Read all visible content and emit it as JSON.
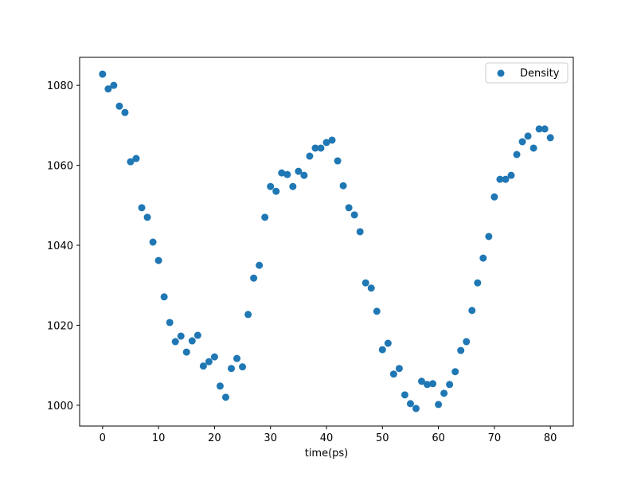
{
  "chart_data": {
    "type": "scatter",
    "xlabel": "time(ps)",
    "x": [
      0,
      1,
      2,
      3,
      4,
      5,
      6,
      7,
      8,
      9,
      10,
      11,
      12,
      13,
      14,
      15,
      16,
      17,
      18,
      19,
      20,
      21,
      22,
      23,
      24,
      25,
      26,
      27,
      28,
      29,
      30,
      31,
      32,
      33,
      34,
      35,
      36,
      37,
      38,
      39,
      40,
      41,
      42,
      43,
      44,
      45,
      46,
      47,
      48,
      49,
      50,
      51,
      52,
      53,
      54,
      55,
      56,
      57,
      58,
      59,
      60,
      61,
      62,
      63,
      64,
      65,
      66,
      67,
      68,
      69,
      70,
      71,
      72,
      73,
      74,
      75,
      76,
      77,
      78,
      79,
      80
    ],
    "series": [
      {
        "name": "Density",
        "color": "#1f77b4",
        "values": [
          1082.8,
          1079.1,
          1080,
          1074.8,
          1073.2,
          1060.9,
          1061.7,
          1049.4,
          1047,
          1040.8,
          1036.2,
          1027.1,
          1020.7,
          1015.9,
          1017.3,
          1013.3,
          1016.1,
          1017.5,
          1009.8,
          1010.9,
          1012.1,
          1004.8,
          1002,
          1009.2,
          1011.7,
          1009.6,
          1022.7,
          1031.8,
          1035,
          1047,
          1054.7,
          1053.5,
          1058.1,
          1057.7,
          1054.7,
          1058.5,
          1057.5,
          1062.3,
          1064.3,
          1064.3,
          1065.7,
          1066.3,
          1061.1,
          1054.9,
          1049.4,
          1047.6,
          1043.4,
          1030.6,
          1029.3,
          1023.5,
          1013.9,
          1015.5,
          1007.8,
          1009.2,
          1002.6,
          1000.4,
          999.2,
          1006,
          1005.2,
          1005.4,
          1000.2,
          1003,
          1005.2,
          1008.4,
          1013.7,
          1015.9,
          1023.7,
          1030.6,
          1036.8,
          1042.2,
          1052.1,
          1056.5,
          1056.5,
          1057.5,
          1062.7,
          1065.9,
          1067.3,
          1064.3,
          1069.1,
          1069.1,
          1066.9
        ]
      }
    ],
    "xlim": [
      -4.1,
      84.1
    ],
    "ylim": [
      994.8,
      1087
    ],
    "xticks": [
      0,
      10,
      20,
      30,
      40,
      50,
      60,
      70,
      80
    ],
    "yticks": [
      1000,
      1020,
      1040,
      1060,
      1080
    ],
    "legend": "upper right"
  }
}
